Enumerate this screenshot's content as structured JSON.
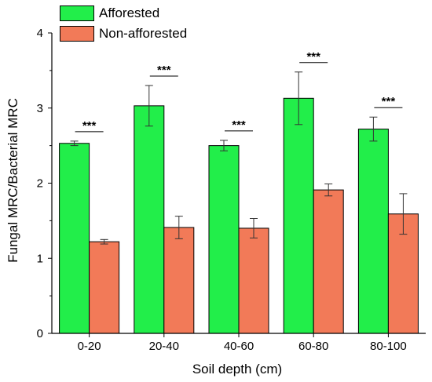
{
  "chart_data": {
    "type": "bar",
    "categories": [
      "0-20",
      "20-40",
      "40-60",
      "60-80",
      "80-100"
    ],
    "series": [
      {
        "name": "Afforested",
        "values": [
          2.53,
          3.03,
          2.5,
          3.13,
          2.72
        ],
        "errors": [
          0.03,
          0.27,
          0.07,
          0.35,
          0.16
        ]
      },
      {
        "name": "Non-afforested",
        "values": [
          1.22,
          1.41,
          1.4,
          1.91,
          1.59
        ],
        "errors": [
          0.03,
          0.15,
          0.13,
          0.08,
          0.27
        ]
      }
    ],
    "significance": [
      "***",
      "***",
      "***",
      "***",
      "***"
    ],
    "xlabel": "Soil depth (cm)",
    "ylabel": "Fungal MRC/Bacterial MRC",
    "ylim": [
      0,
      4
    ],
    "yticks": [
      "0",
      "1",
      "2",
      "3",
      "4"
    ],
    "grid": false,
    "legend_position": "top-left",
    "colors": {
      "Afforested": "#22ee4a",
      "Non-afforested": "#f27a58"
    }
  }
}
